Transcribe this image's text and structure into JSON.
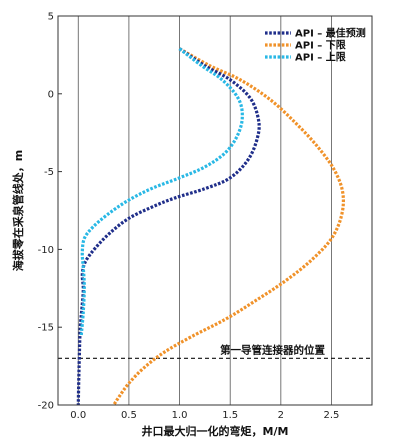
{
  "chart_data": {
    "type": "line",
    "xlabel": "井口最大归一化的弯矩，M/M",
    "ylabel": "海拔零在采泉管线处，m",
    "xlim": [
      -0.2,
      2.9
    ],
    "ylim": [
      -20,
      5
    ],
    "xticks": [
      "0.0",
      "0.5",
      "1.0",
      "1.5",
      "2",
      "2.5"
    ],
    "xtick_values": [
      0,
      0.5,
      1.0,
      1.5,
      2,
      2.5
    ],
    "yticks": [
      "5",
      "0",
      "-5",
      "-10",
      "-15",
      "-20"
    ],
    "ytick_values": [
      5,
      0,
      -5,
      -10,
      -15,
      -20
    ],
    "grid": "vertical",
    "legend_position": "top-right",
    "annotation": {
      "text": "第一导管连接器的位置",
      "y": -17
    },
    "series": [
      {
        "name": "API – 最佳预测",
        "color": "#1f2e8a",
        "points": [
          [
            1.0,
            2.9
          ],
          [
            1.25,
            1.8
          ],
          [
            1.5,
            0.9
          ],
          [
            1.7,
            -0.3
          ],
          [
            1.78,
            -1.7
          ],
          [
            1.77,
            -2.8
          ],
          [
            1.68,
            -4.2
          ],
          [
            1.5,
            -5.4
          ],
          [
            1.25,
            -6.1
          ],
          [
            0.95,
            -6.7
          ],
          [
            0.72,
            -7.3
          ],
          [
            0.5,
            -8.0
          ],
          [
            0.32,
            -8.9
          ],
          [
            0.17,
            -9.9
          ],
          [
            0.07,
            -10.8
          ],
          [
            0.04,
            -11.6
          ],
          [
            0.05,
            -12.5
          ],
          [
            0.04,
            -13.5
          ],
          [
            0.02,
            -15.0
          ],
          [
            0.01,
            -17.0
          ],
          [
            0.0,
            -20.0
          ]
        ]
      },
      {
        "name": "API – 下限",
        "color": "#f0922a",
        "points": [
          [
            1.0,
            2.9
          ],
          [
            1.3,
            1.8
          ],
          [
            1.6,
            0.9
          ],
          [
            1.9,
            -0.4
          ],
          [
            2.15,
            -1.9
          ],
          [
            2.35,
            -3.3
          ],
          [
            2.52,
            -4.8
          ],
          [
            2.61,
            -6.3
          ],
          [
            2.6,
            -7.8
          ],
          [
            2.5,
            -9.3
          ],
          [
            2.3,
            -10.7
          ],
          [
            2.05,
            -12.0
          ],
          [
            1.75,
            -13.3
          ],
          [
            1.45,
            -14.5
          ],
          [
            1.12,
            -15.6
          ],
          [
            0.85,
            -16.6
          ],
          [
            0.65,
            -17.6
          ],
          [
            0.5,
            -18.6
          ],
          [
            0.4,
            -19.5
          ],
          [
            0.35,
            -20.0
          ]
        ]
      },
      {
        "name": "API – 上限",
        "color": "#29b8e5",
        "points": [
          [
            1.0,
            2.9
          ],
          [
            1.22,
            1.8
          ],
          [
            1.42,
            0.9
          ],
          [
            1.58,
            -0.3
          ],
          [
            1.62,
            -1.5
          ],
          [
            1.57,
            -2.7
          ],
          [
            1.45,
            -3.8
          ],
          [
            1.25,
            -4.7
          ],
          [
            1.0,
            -5.4
          ],
          [
            0.72,
            -6.1
          ],
          [
            0.48,
            -6.9
          ],
          [
            0.28,
            -7.8
          ],
          [
            0.14,
            -8.6
          ],
          [
            0.06,
            -9.3
          ],
          [
            0.04,
            -10.2
          ],
          [
            0.05,
            -11.2
          ],
          [
            0.06,
            -12.4
          ],
          [
            0.05,
            -14.0
          ],
          [
            0.03,
            -15.5
          ]
        ]
      }
    ]
  }
}
